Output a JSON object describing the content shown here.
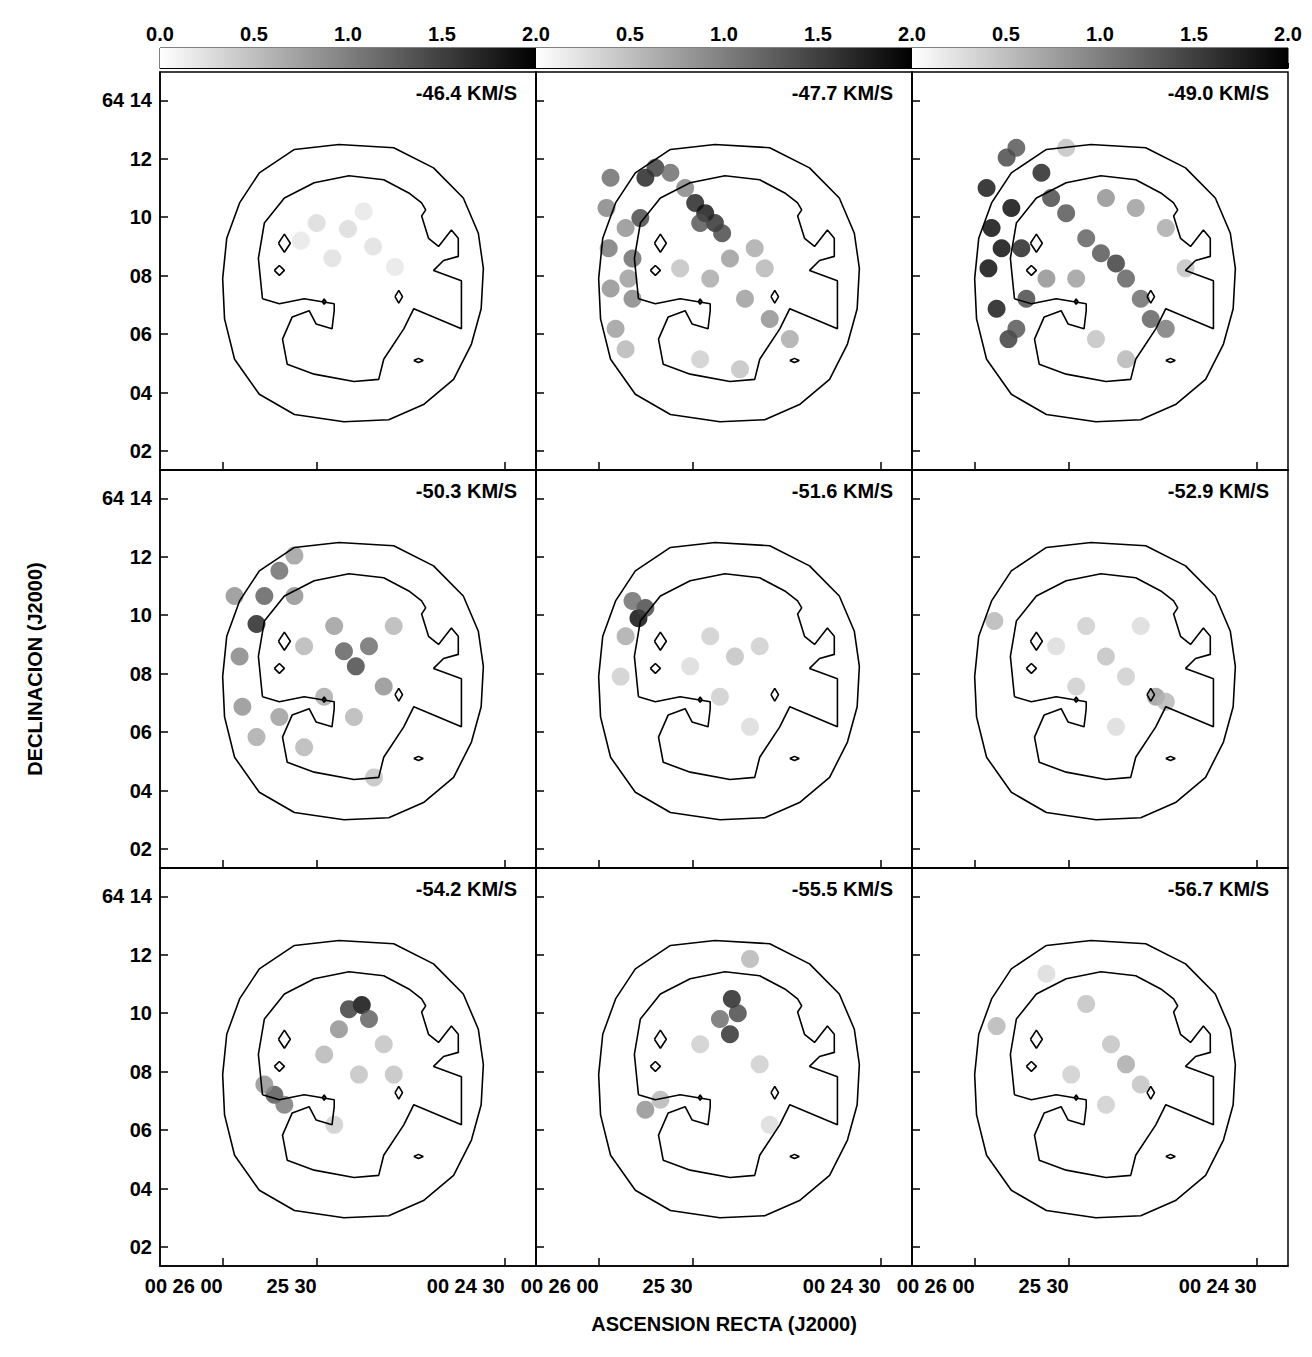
{
  "chart_data": {
    "type": "scatter",
    "xlabel": "ASCENSION RECTA (J2000)",
    "ylabel": "DECLINACION (J2000)",
    "xlim": [
      1580,
      1460
    ],
    "xticks": [
      {
        "value": 1560,
        "label": "00 26 00"
      },
      {
        "value": 1530,
        "label": "25 30"
      },
      {
        "value": 1470,
        "label": "00 24 30"
      }
    ],
    "ylim": [
      1.35,
      14.97
    ],
    "yticks": [
      {
        "value": 2,
        "label": "02"
      },
      {
        "value": 4,
        "label": "04"
      },
      {
        "value": 6,
        "label": "06"
      },
      {
        "value": 8,
        "label": "08"
      },
      {
        "value": 10,
        "label": "10"
      },
      {
        "value": 12,
        "label": "12"
      },
      {
        "value": 14,
        "label": "64 14"
      }
    ],
    "grid": false,
    "colorbar": {
      "range": [
        0,
        2
      ],
      "ticks": [
        {
          "value": 0,
          "label": "0.0"
        },
        0.5,
        {
          "value": 1,
          "label": "1.0"
        },
        1.5,
        {
          "value": 2,
          "label": "2.0"
        }
      ]
    },
    "contours": [
      [
        [
          1537.1,
          12.32
        ],
        [
          1522.9,
          12.49
        ],
        [
          1505.4,
          12.38
        ],
        [
          1492.7,
          11.69
        ],
        [
          1483.2,
          10.66
        ],
        [
          1478.4,
          9.45
        ],
        [
          1476.8,
          8.25
        ],
        [
          1477.5,
          6.87
        ],
        [
          1480.6,
          5.66
        ],
        [
          1486.3,
          4.45
        ],
        [
          1495.9,
          3.59
        ],
        [
          1507.0,
          3.07
        ],
        [
          1521.3,
          3.0
        ],
        [
          1537.1,
          3.25
        ],
        [
          1548.3,
          3.94
        ],
        [
          1556.2,
          5.14
        ],
        [
          1559.4,
          6.52
        ],
        [
          1560.0,
          7.9
        ],
        [
          1558.7,
          9.28
        ],
        [
          1554.6,
          10.49
        ],
        [
          1548.3,
          11.52
        ],
        [
          1537.1,
          12.32
        ]
      ],
      [
        [
          1547.3,
          7.21
        ],
        [
          1548.6,
          8.59
        ],
        [
          1546.7,
          9.8
        ],
        [
          1540.3,
          10.66
        ],
        [
          1530.8,
          11.18
        ],
        [
          1519.7,
          11.42
        ],
        [
          1508.6,
          11.28
        ],
        [
          1500.6,
          10.83
        ],
        [
          1496.5,
          10.49
        ],
        [
          1495.2,
          10.25
        ],
        [
          1496.5,
          10.04
        ],
        [
          1494.3,
          9.28
        ],
        [
          1491.1,
          9.0
        ],
        [
          1487.0,
          9.56
        ],
        [
          1484.8,
          9.28
        ],
        [
          1484.8,
          8.66
        ],
        [
          1489.5,
          8.52
        ],
        [
          1492.7,
          8.18
        ],
        [
          1483.8,
          7.83
        ],
        [
          1483.8,
          6.18
        ],
        [
          1499.0,
          6.87
        ],
        [
          1502.2,
          6.18
        ],
        [
          1508.6,
          5.14
        ],
        [
          1510.2,
          4.45
        ],
        [
          1518.1,
          4.38
        ],
        [
          1530.8,
          4.63
        ],
        [
          1539.4,
          4.97
        ],
        [
          1540.9,
          5.83
        ],
        [
          1537.8,
          6.59
        ],
        [
          1532.4,
          6.8
        ],
        [
          1530.2,
          6.35
        ],
        [
          1525.1,
          6.18
        ],
        [
          1524.4,
          6.8
        ],
        [
          1524.4,
          7.04
        ],
        [
          1534.0,
          7.21
        ],
        [
          1541.9,
          7.04
        ],
        [
          1547.3,
          7.21
        ]
      ],
      [
        [
          1542.2,
          9.11
        ],
        [
          1540.3,
          9.42
        ],
        [
          1538.4,
          9.11
        ],
        [
          1540.3,
          8.8
        ],
        [
          1542.2,
          9.11
        ]
      ],
      [
        [
          1543.5,
          8.18
        ],
        [
          1541.9,
          8.35
        ],
        [
          1540.3,
          8.18
        ],
        [
          1541.9,
          8.01
        ],
        [
          1543.5,
          8.18
        ]
      ],
      [
        [
          1528.2,
          7.11
        ],
        [
          1527.6,
          7.2
        ],
        [
          1527.0,
          7.11
        ],
        [
          1527.6,
          7.02
        ],
        [
          1528.2,
          7.11
        ]
      ],
      [
        [
          1505.0,
          7.28
        ],
        [
          1503.8,
          7.5
        ],
        [
          1502.6,
          7.28
        ],
        [
          1503.8,
          7.06
        ],
        [
          1505.0,
          7.28
        ]
      ],
      [
        [
          1499.0,
          5.1
        ],
        [
          1497.5,
          5.17
        ],
        [
          1496.0,
          5.1
        ],
        [
          1497.5,
          5.03
        ],
        [
          1499.0,
          5.1
        ]
      ]
    ],
    "panels": [
      {
        "title": "-46.4 KM/S",
        "points": [
          [
            1530,
            9.8,
            0.3
          ],
          [
            1520,
            9.6,
            0.3
          ],
          [
            1512,
            9.0,
            0.25
          ],
          [
            1525,
            8.6,
            0.25
          ],
          [
            1505,
            8.3,
            0.2
          ],
          [
            1535,
            9.2,
            0.2
          ],
          [
            1515,
            10.2,
            0.2
          ]
        ]
      },
      {
        "title": "-47.7 KM/S",
        "points": [
          [
            1556.2,
            11.35,
            1.2
          ],
          [
            1557.5,
            10.32,
            1.0
          ],
          [
            1556.8,
            8.94,
            1.1
          ],
          [
            1556.2,
            7.56,
            0.9
          ],
          [
            1554.6,
            6.18,
            0.8
          ],
          [
            1551.4,
            5.48,
            0.6
          ],
          [
            1545.1,
            11.35,
            1.8
          ],
          [
            1541.9,
            11.69,
            1.6
          ],
          [
            1546.7,
            9.97,
            1.5
          ],
          [
            1549.2,
            8.59,
            1.2
          ],
          [
            1549.2,
            7.21,
            1.0
          ],
          [
            1551.4,
            9.63,
            0.9
          ],
          [
            1550.5,
            7.9,
            0.8
          ],
          [
            1537.1,
            11.52,
            1.2
          ],
          [
            1532.4,
            11.0,
            1.0
          ],
          [
            1529.2,
            10.49,
            1.8
          ],
          [
            1526.0,
            10.14,
            1.9
          ],
          [
            1522.9,
            9.8,
            1.7
          ],
          [
            1520.6,
            9.45,
            1.5
          ],
          [
            1527.6,
            9.8,
            1.4
          ],
          [
            1518.1,
            8.59,
            0.8
          ],
          [
            1510.2,
            8.94,
            0.7
          ],
          [
            1524.4,
            7.9,
            0.7
          ],
          [
            1513.3,
            7.21,
            0.8
          ],
          [
            1505.4,
            6.52,
            0.9
          ],
          [
            1499.0,
            5.83,
            0.7
          ],
          [
            1507.0,
            8.25,
            0.6
          ],
          [
            1534.0,
            8.25,
            0.5
          ],
          [
            1527.6,
            5.14,
            0.4
          ],
          [
            1514.9,
            4.8,
            0.5
          ]
        ]
      },
      {
        "title": "-49.0 KM/S",
        "points": [
          [
            1556.2,
            11.0,
            1.9
          ],
          [
            1554.6,
            9.63,
            2.0
          ],
          [
            1555.6,
            8.25,
            2.0
          ],
          [
            1553.0,
            6.87,
            1.9
          ],
          [
            1549.2,
            5.83,
            1.6
          ],
          [
            1549.8,
            12.04,
            1.5
          ],
          [
            1546.7,
            12.38,
            1.4
          ],
          [
            1548.3,
            10.32,
            2.0
          ],
          [
            1545.1,
            8.94,
            1.8
          ],
          [
            1543.5,
            7.21,
            1.5
          ],
          [
            1551.4,
            8.94,
            2.0
          ],
          [
            1546.7,
            6.18,
            1.4
          ],
          [
            1538.7,
            11.52,
            1.8
          ],
          [
            1535.6,
            10.66,
            1.5
          ],
          [
            1530.8,
            10.14,
            1.4
          ],
          [
            1524.4,
            9.28,
            1.3
          ],
          [
            1519.7,
            8.77,
            1.4
          ],
          [
            1514.9,
            8.42,
            1.6
          ],
          [
            1511.7,
            7.9,
            1.3
          ],
          [
            1507.0,
            7.21,
            1.2
          ],
          [
            1503.8,
            6.52,
            1.3
          ],
          [
            1499.0,
            6.18,
            1.1
          ],
          [
            1518.1,
            10.66,
            0.9
          ],
          [
            1508.6,
            10.32,
            0.8
          ],
          [
            1499.0,
            9.63,
            0.7
          ],
          [
            1527.6,
            7.9,
            0.8
          ],
          [
            1537.1,
            7.9,
            0.9
          ],
          [
            1521.3,
            5.83,
            0.5
          ],
          [
            1511.7,
            5.14,
            0.6
          ],
          [
            1492.7,
            8.25,
            0.5
          ],
          [
            1530.8,
            12.38,
            0.5
          ]
        ]
      },
      {
        "title": "-50.3 KM/S",
        "points": [
          [
            1556.2,
            10.66,
            0.9
          ],
          [
            1554.6,
            8.59,
            1.0
          ],
          [
            1553.7,
            6.87,
            0.9
          ],
          [
            1549.2,
            5.83,
            0.7
          ],
          [
            1549.2,
            9.7,
            1.8
          ],
          [
            1546.7,
            10.66,
            1.3
          ],
          [
            1541.9,
            11.52,
            1.2
          ],
          [
            1537.1,
            12.04,
            0.8
          ],
          [
            1537.1,
            10.66,
            0.9
          ],
          [
            1541.9,
            6.52,
            0.8
          ],
          [
            1534.0,
            5.48,
            0.6
          ],
          [
            1521.3,
            8.77,
            1.3
          ],
          [
            1517.5,
            8.25,
            1.5
          ],
          [
            1513.3,
            8.94,
            1.2
          ],
          [
            1524.4,
            9.63,
            0.8
          ],
          [
            1508.6,
            7.56,
            0.9
          ],
          [
            1527.6,
            7.21,
            0.7
          ],
          [
            1534.0,
            8.94,
            0.6
          ],
          [
            1505.4,
            9.63,
            0.6
          ],
          [
            1518.1,
            6.52,
            0.6
          ],
          [
            1511.7,
            4.45,
            0.5
          ]
        ]
      },
      {
        "title": "-51.6 KM/S",
        "points": [
          [
            1547.3,
            9.9,
            2.0
          ],
          [
            1545.1,
            10.25,
            1.5
          ],
          [
            1549.2,
            10.49,
            1.2
          ],
          [
            1551.4,
            9.28,
            0.7
          ],
          [
            1553.0,
            7.9,
            0.4
          ],
          [
            1524.4,
            9.28,
            0.4
          ],
          [
            1516.5,
            8.59,
            0.5
          ],
          [
            1521.3,
            7.21,
            0.4
          ],
          [
            1508.6,
            8.94,
            0.4
          ],
          [
            1530.8,
            8.25,
            0.3
          ],
          [
            1511.7,
            6.18,
            0.3
          ]
        ]
      },
      {
        "title": "-52.9 KM/S",
        "points": [
          [
            1553.7,
            9.8,
            0.6
          ],
          [
            1502.2,
            7.21,
            0.8
          ],
          [
            1499.0,
            7.04,
            0.6
          ],
          [
            1524.4,
            9.63,
            0.4
          ],
          [
            1518.1,
            8.59,
            0.5
          ],
          [
            1527.6,
            7.56,
            0.4
          ],
          [
            1511.7,
            7.9,
            0.4
          ],
          [
            1534.0,
            8.94,
            0.3
          ],
          [
            1514.9,
            6.18,
            0.3
          ],
          [
            1507.0,
            9.63,
            0.3
          ]
        ]
      },
      {
        "title": "-54.2 KM/S",
        "points": [
          [
            1515.6,
            10.28,
            2.0
          ],
          [
            1519.7,
            10.14,
            1.6
          ],
          [
            1513.3,
            9.8,
            1.3
          ],
          [
            1522.9,
            9.45,
            0.9
          ],
          [
            1543.5,
            7.21,
            1.4
          ],
          [
            1540.3,
            6.87,
            1.1
          ],
          [
            1546.7,
            7.56,
            0.9
          ],
          [
            1527.6,
            8.59,
            0.6
          ],
          [
            1516.5,
            7.9,
            0.5
          ],
          [
            1505.4,
            7.9,
            0.5
          ],
          [
            1524.4,
            6.18,
            0.4
          ],
          [
            1508.6,
            8.94,
            0.5
          ]
        ]
      },
      {
        "title": "-55.5 KM/S",
        "points": [
          [
            1517.5,
            10.49,
            1.8
          ],
          [
            1515.6,
            10.0,
            1.5
          ],
          [
            1518.1,
            9.28,
            1.7
          ],
          [
            1521.3,
            9.8,
            1.2
          ],
          [
            1511.7,
            11.86,
            0.6
          ],
          [
            1545.1,
            6.7,
            0.9
          ],
          [
            1540.3,
            7.04,
            0.6
          ],
          [
            1527.6,
            8.94,
            0.4
          ],
          [
            1508.6,
            8.25,
            0.4
          ],
          [
            1505.4,
            6.18,
            0.3
          ]
        ]
      },
      {
        "title": "-56.7 KM/S",
        "points": [
          [
            1553.0,
            9.56,
            0.6
          ],
          [
            1511.7,
            8.25,
            0.7
          ],
          [
            1516.5,
            8.94,
            0.5
          ],
          [
            1507.0,
            7.56,
            0.5
          ],
          [
            1524.4,
            10.32,
            0.5
          ],
          [
            1529.2,
            7.9,
            0.4
          ],
          [
            1518.1,
            6.87,
            0.4
          ],
          [
            1537.1,
            11.35,
            0.3
          ]
        ]
      }
    ]
  }
}
